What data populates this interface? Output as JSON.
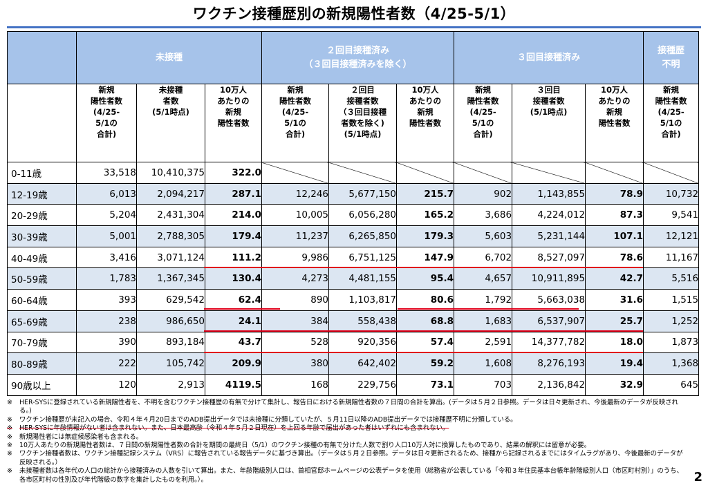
{
  "title": "ワクチン接種歴別の新規陽性者数（4/25-5/1）",
  "header": {
    "group1": "未接種",
    "group2_line1": "２回目接種済み",
    "group2_line2": "（３回目接種済みを除く）",
    "group3": "３回目接種済み",
    "group4": "接種歴\n不明",
    "sub": [
      "新規\n陽性者数\n(4/25-\n5/1の\n合計)",
      "未接種\n者数\n(5/1時点)",
      "10万人\nあたりの\n新規\n陽性者数",
      "新規\n陽性者数\n(4/25-\n5/1の\n合計)",
      "２回目\n接種者数\n（３回目接種\n者数を除く)\n(5/1時点)",
      "10万人\nあたりの\n新規\n陽性者数",
      "新規\n陽性者数\n(4/25-\n5/1の\n合計)",
      "３回目\n接種者数\n(5/1時点)",
      "10万人\nあたりの\n新規\n陽性者数",
      "新規\n陽性者数\n(4/25-\n5/1の\n合計)"
    ]
  },
  "rows": [
    {
      "age": "0-11歳",
      "v": [
        "33,518",
        "10,410,375",
        "322.0",
        "",
        "",
        "",
        "",
        "",
        "",
        ""
      ]
    },
    {
      "age": "12-19歳",
      "v": [
        "6,013",
        "2,094,217",
        "287.1",
        "12,246",
        "5,677,150",
        "215.7",
        "902",
        "1,143,855",
        "78.9",
        "10,732"
      ]
    },
    {
      "age": "20-29歳",
      "v": [
        "5,204",
        "2,431,304",
        "214.0",
        "10,005",
        "6,056,280",
        "165.2",
        "3,686",
        "4,224,012",
        "87.3",
        "9,541"
      ]
    },
    {
      "age": "30-39歳",
      "v": [
        "5,001",
        "2,788,305",
        "179.4",
        "11,237",
        "6,265,850",
        "179.3",
        "5,603",
        "5,231,144",
        "107.1",
        "12,121"
      ]
    },
    {
      "age": "40-49歳",
      "v": [
        "3,416",
        "3,071,124",
        "111.2",
        "9,986",
        "6,751,125",
        "147.9",
        "6,702",
        "8,527,097",
        "78.6",
        "11,167"
      ]
    },
    {
      "age": "50-59歳",
      "v": [
        "1,783",
        "1,367,345",
        "130.4",
        "4,273",
        "4,481,155",
        "95.4",
        "4,657",
        "10,911,895",
        "42.7",
        "5,516"
      ]
    },
    {
      "age": "60-64歳",
      "v": [
        "393",
        "629,542",
        "62.4",
        "890",
        "1,103,817",
        "80.6",
        "1,792",
        "5,663,038",
        "31.6",
        "1,515"
      ]
    },
    {
      "age": "65-69歳",
      "v": [
        "238",
        "986,650",
        "24.1",
        "384",
        "558,438",
        "68.8",
        "1,683",
        "6,537,907",
        "25.7",
        "1,252"
      ]
    },
    {
      "age": "70-79歳",
      "v": [
        "390",
        "893,184",
        "43.7",
        "528",
        "920,356",
        "57.4",
        "2,591",
        "14,377,782",
        "18.0",
        "1,873"
      ]
    },
    {
      "age": "80-89歳",
      "v": [
        "222",
        "105,742",
        "209.9",
        "380",
        "642,402",
        "59.2",
        "1,608",
        "8,276,193",
        "19.4",
        "1,368"
      ]
    },
    {
      "age": "90歳以上",
      "v": [
        "120",
        "2,913",
        "4119.5",
        "168",
        "229,756",
        "73.1",
        "703",
        "2,136,842",
        "32.9",
        "645"
      ]
    }
  ],
  "notes": [
    {
      "mark": "※",
      "text": "HER-SYSに登録されている新規陽性者を、不明を含むワクチン接種歴の有無で分けて集計し、報告日における新規陽性者数の７日間の合計を算出。(データは５月２日参照。データは日々更新され、今後最新のデータが反映される。)"
    },
    {
      "mark": "※",
      "text": "ワクチン接種歴が未記入の場合、令和４年４月20日までのADB提出データでは未接種に分類していたが、５月11日以降のADB提出データでは接種歴不明に分類している。"
    },
    {
      "mark": "※",
      "text": "HER-SYSに年齢情報がない者は含まれない。また、日本最高齢（令和４年５月２日現在）を上回る年齢で届出があった者はいずれにも含まれない。"
    },
    {
      "mark": "※",
      "text": "新規陽性者には無症候感染者も含まれる。"
    },
    {
      "mark": "※",
      "text": "10万人あたりの新規陽性者数は、７日間の新規陽性者数の合計を期間の最終日（5/1）のワクチン接種の有無で分けた人数で割り人口10万人対に換算したものであり、結果の解釈には留意が必要。"
    },
    {
      "mark": "※",
      "text": "ワクチン接種者数は、ワクチン接種記録システム（VRS）に報告されている報告データに基づき算出。（データは５月２日参照。データは日々更新されるため、接種から記録されるまでにはタイムラグがあり、今後最新のデータが反映される。）"
    },
    {
      "mark": "※",
      "text": "未接種者数は各年代の人口の総計から接種済みの人数を引いて算出。また、年齢階級別人口は、首相官邸ホームページの公表データを使用（総務省が公表している「令和３年住民基本台帳年齢階級別人口（市区町村別）」のうち、各市区町村の性別及び年代階級の数字を集計したものを利用。）。"
    }
  ],
  "page_number": "2",
  "colors": {
    "header_fill": "#a6c3ea",
    "row_shade": "#dce6f2",
    "accent_rule": "#4472c4",
    "red_line": "#e0001a"
  }
}
